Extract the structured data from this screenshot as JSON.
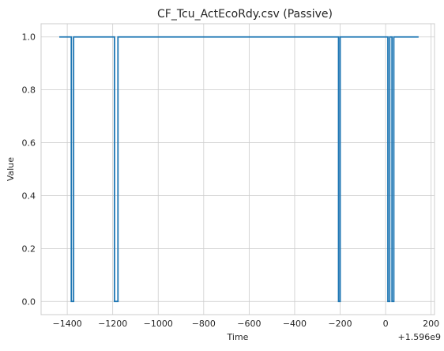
{
  "chart_data": {
    "type": "line",
    "title": "CF_Tcu_ActEcoRdy.csv (Passive)",
    "xlabel": "Time",
    "ylabel": "Value",
    "offset_label": "+1.596e9",
    "xlim": [
      -1515,
      215
    ],
    "ylim": [
      -0.05,
      1.05
    ],
    "xticks": [
      -1400,
      -1200,
      -1000,
      -800,
      -600,
      -400,
      -200,
      0,
      200
    ],
    "xtick_labels": [
      "−1400",
      "−1200",
      "−1000",
      "−800",
      "−600",
      "−400",
      "−200",
      "0",
      "200"
    ],
    "yticks": [
      0.0,
      0.2,
      0.4,
      0.6,
      0.8,
      1.0
    ],
    "ytick_labels": [
      "0.0",
      "0.2",
      "0.4",
      "0.6",
      "0.8",
      "1.0"
    ],
    "grid": true,
    "series_color": "#1f77b4",
    "x": [
      -1435,
      -1382,
      -1382,
      -1372,
      -1372,
      -1192,
      -1192,
      -1177,
      -1177,
      -207,
      -207,
      -200,
      -200,
      10,
      10,
      18,
      18,
      28,
      28,
      36,
      36,
      145
    ],
    "y": [
      1,
      1,
      0,
      0,
      1,
      1,
      0,
      0,
      1,
      1,
      0,
      0,
      1,
      1,
      0,
      0,
      1,
      1,
      0,
      0,
      1,
      1
    ]
  }
}
